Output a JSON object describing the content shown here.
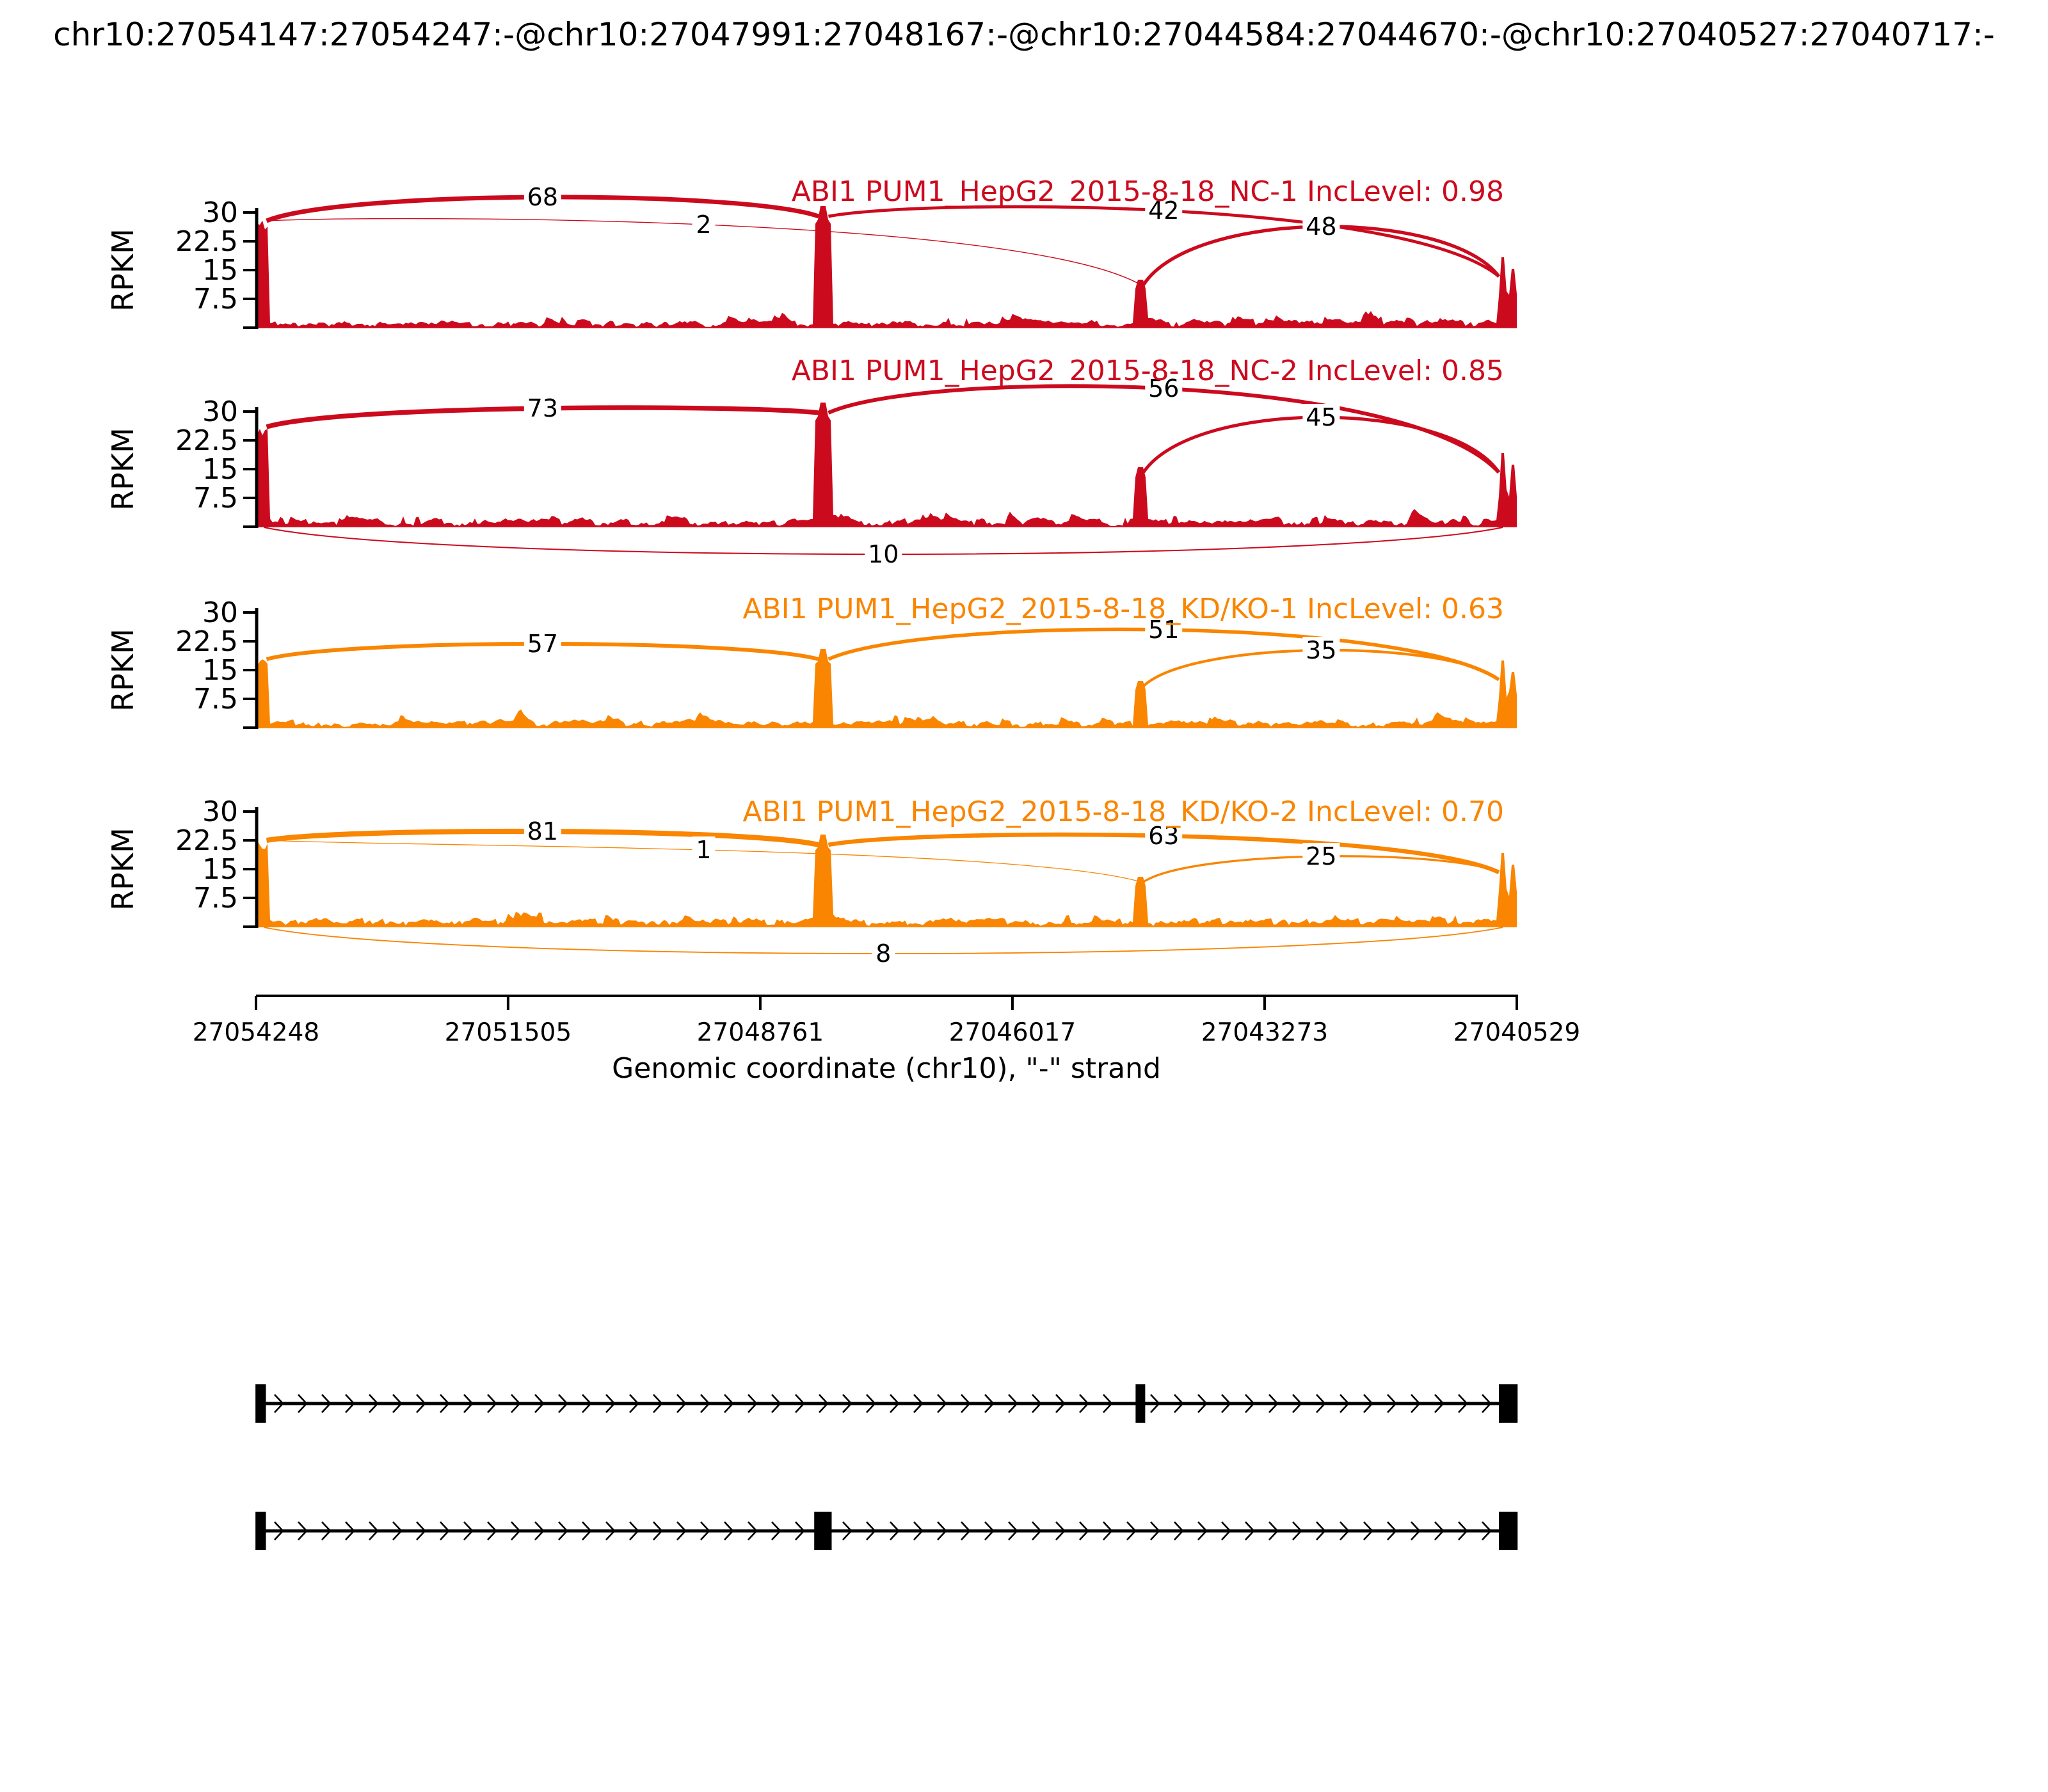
{
  "figure_title": "chr10:27054147:27054247:-@chr10:27047991:27048167:-@chr10:27044584:27044670:-@chr10:27040527:27040717:-",
  "chart_data": {
    "type": "area",
    "subtype": "sashimi-plot",
    "gene": "ABI1",
    "x_start": 27054248,
    "x_end": 27040529,
    "ylabel": "RPKM",
    "yticks": [
      30,
      22.5,
      15,
      7.5
    ],
    "xlabel": "Genomic coordinate (chr10), \"-\" strand",
    "xticks": [
      27054248,
      27051505,
      27048761,
      27046017,
      27043273,
      27040529
    ],
    "strand": "-",
    "exons": {
      "upstream_exon": [
        27054147,
        27054247
      ],
      "exon1": [
        27047991,
        27048167
      ],
      "exon2": [
        27044584,
        27044670
      ],
      "downstream_exon": [
        27040527,
        27040717
      ]
    },
    "tracks": [
      {
        "title": "ABI1 PUM1_HepG2_2015-8-18_NC-1 IncLevel: 0.98",
        "inc_level": 0.98,
        "color": "#CC0A1E",
        "junctions": [
          {
            "from": "upstream_exon",
            "to": "exon1",
            "reads": 68,
            "below": false
          },
          {
            "from": "upstream_exon",
            "to": "exon2",
            "reads": 2,
            "below": false
          },
          {
            "from": "exon1",
            "to": "downstream_exon",
            "reads": 42,
            "below": false
          },
          {
            "from": "exon2",
            "to": "downstream_exon",
            "reads": 48,
            "below": false
          }
        ]
      },
      {
        "title": "ABI1 PUM1_HepG2_2015-8-18_NC-2 IncLevel: 0.85",
        "inc_level": 0.85,
        "color": "#CC0A1E",
        "junctions": [
          {
            "from": "upstream_exon",
            "to": "exon1",
            "reads": 73,
            "below": false
          },
          {
            "from": "exon1",
            "to": "downstream_exon",
            "reads": 56,
            "below": false
          },
          {
            "from": "exon2",
            "to": "downstream_exon",
            "reads": 45,
            "below": false
          },
          {
            "from": "upstream_exon",
            "to": "downstream_exon",
            "reads": 10,
            "below": true
          }
        ]
      },
      {
        "title": "ABI1 PUM1_HepG2_2015-8-18_KD/KO-1 IncLevel: 0.63",
        "inc_level": 0.63,
        "color": "#F98500",
        "junctions": [
          {
            "from": "upstream_exon",
            "to": "exon1",
            "reads": 57,
            "below": false
          },
          {
            "from": "exon1",
            "to": "downstream_exon",
            "reads": 51,
            "below": false
          },
          {
            "from": "exon2",
            "to": "downstream_exon",
            "reads": 35,
            "below": false
          }
        ]
      },
      {
        "title": "ABI1 PUM1_HepG2_2015-8-18_KD/KO-2 IncLevel: 0.70",
        "inc_level": 0.7,
        "color": "#F98500",
        "junctions": [
          {
            "from": "upstream_exon",
            "to": "exon1",
            "reads": 81,
            "below": false
          },
          {
            "from": "upstream_exon",
            "to": "exon2",
            "reads": 1,
            "below": false
          },
          {
            "from": "exon1",
            "to": "downstream_exon",
            "reads": 63,
            "below": false
          },
          {
            "from": "exon2",
            "to": "downstream_exon",
            "reads": 25,
            "below": false
          },
          {
            "from": "upstream_exon",
            "to": "downstream_exon",
            "reads": 8,
            "below": true
          }
        ]
      }
    ],
    "transcripts": [
      [
        "upstream_exon",
        "exon2",
        "downstream_exon"
      ],
      [
        "upstream_exon",
        "exon1",
        "downstream_exon"
      ]
    ]
  }
}
